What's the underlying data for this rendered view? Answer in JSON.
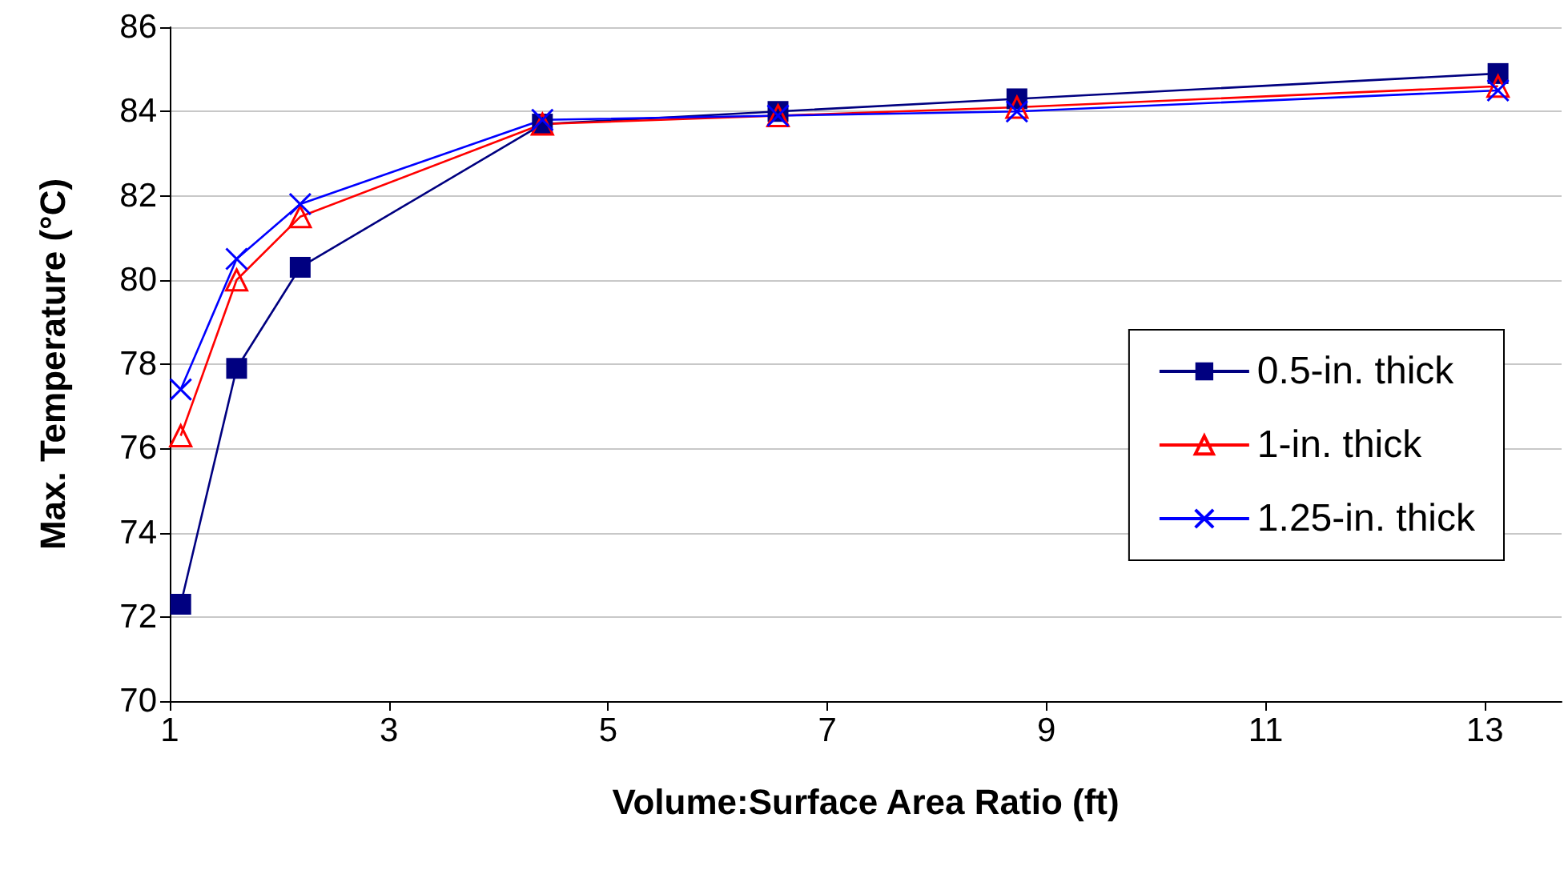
{
  "chart_data": {
    "type": "line",
    "xlabel": "Volume:Surface Area Ratio (ft)",
    "ylabel": "Max. Temperature (°C)",
    "x": [
      1.1,
      1.61,
      2.19,
      4.4,
      6.55,
      8.73,
      13.12
    ],
    "series": [
      {
        "name": "0.5-in. thick",
        "color": "#000080",
        "marker": "square",
        "values": [
          72.3,
          77.9,
          80.3,
          83.7,
          84.0,
          84.3,
          84.9
        ]
      },
      {
        "name": "1-in. thick",
        "color": "#ff0000",
        "marker": "triangle",
        "values": [
          76.3,
          80.0,
          81.5,
          83.7,
          83.9,
          84.1,
          84.6
        ]
      },
      {
        "name": "1.25-in. thick",
        "color": "#0000ff",
        "marker": "cross",
        "values": [
          77.4,
          80.5,
          81.8,
          83.8,
          83.9,
          84.0,
          84.5
        ]
      }
    ],
    "xlim": [
      1,
      13.7
    ],
    "xticks": [
      1,
      3,
      5,
      7,
      9,
      11,
      13
    ],
    "ylim": [
      70,
      86
    ],
    "yticks": [
      70,
      72,
      74,
      76,
      78,
      80,
      82,
      84,
      86
    ],
    "grid": "y",
    "legend": "right",
    "line_style": "solid"
  }
}
